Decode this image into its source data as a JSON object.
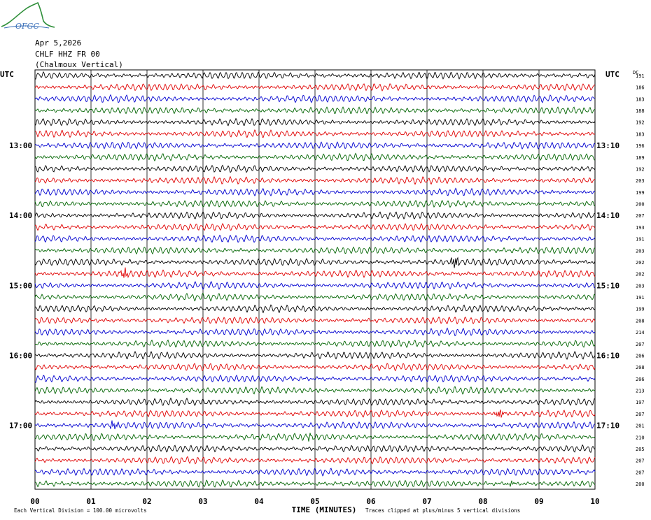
{
  "logo": {
    "text": "OFGC",
    "colors": {
      "outline": "#2f8f3a",
      "text": "#3a6fb8"
    }
  },
  "header": {
    "date": "Apr 5,2026",
    "station": "CHLF HHZ FR 00",
    "location": "(Chalmoux Vertical)"
  },
  "chart_data": {
    "type": "line",
    "title": "",
    "left_axis_label": "UTC",
    "right_axis_label": "UTC",
    "right_column_header": "DC",
    "xlabel": "TIME (MINUTES)",
    "xlim": [
      0,
      10
    ],
    "x_ticks": [
      "00",
      "01",
      "02",
      "03",
      "04",
      "05",
      "06",
      "07",
      "08",
      "09",
      "10"
    ],
    "left_hour_labels": [
      {
        "label": "13:00",
        "trace_index": 6
      },
      {
        "label": "14:00",
        "trace_index": 12
      },
      {
        "label": "15:00",
        "trace_index": 18
      },
      {
        "label": "16:00",
        "trace_index": 24
      },
      {
        "label": "17:00",
        "trace_index": 30
      }
    ],
    "right_hour_labels": [
      {
        "label": "13:10",
        "trace_index": 6
      },
      {
        "label": "14:10",
        "trace_index": 12
      },
      {
        "label": "15:10",
        "trace_index": 18
      },
      {
        "label": "16:10",
        "trace_index": 24
      },
      {
        "label": "17:10",
        "trace_index": 30
      }
    ],
    "trace_colors": [
      "#000000",
      "#e00000",
      "#0000d0",
      "#006400"
    ],
    "dc_offsets": [
      191,
      186,
      183,
      188,
      192,
      183,
      196,
      189,
      192,
      203,
      199,
      200,
      207,
      193,
      191,
      203,
      202,
      202,
      203,
      191,
      199,
      208,
      214,
      207,
      206,
      208,
      206,
      213,
      197,
      207,
      201,
      210,
      205,
      207,
      207,
      200
    ],
    "events": [
      {
        "trace_index": 16,
        "minute": 7.5,
        "amplitude": 1.9
      },
      {
        "trace_index": 17,
        "minute": 1.6,
        "amplitude": 1.5
      },
      {
        "trace_index": 29,
        "minute": 8.3,
        "amplitude": 1.4
      },
      {
        "trace_index": 30,
        "minute": 1.4,
        "amplitude": 1.2
      },
      {
        "trace_index": 31,
        "minute": 4.9,
        "amplitude": 0.8
      },
      {
        "trace_index": 35,
        "minute": 8.5,
        "amplitude": 0.7
      }
    ],
    "grid": true,
    "footer_left": "Each Vertical Division =  100.00 microvolts",
    "footer_right": "Traces clipped at plus/minus 5 vertical divisions"
  }
}
